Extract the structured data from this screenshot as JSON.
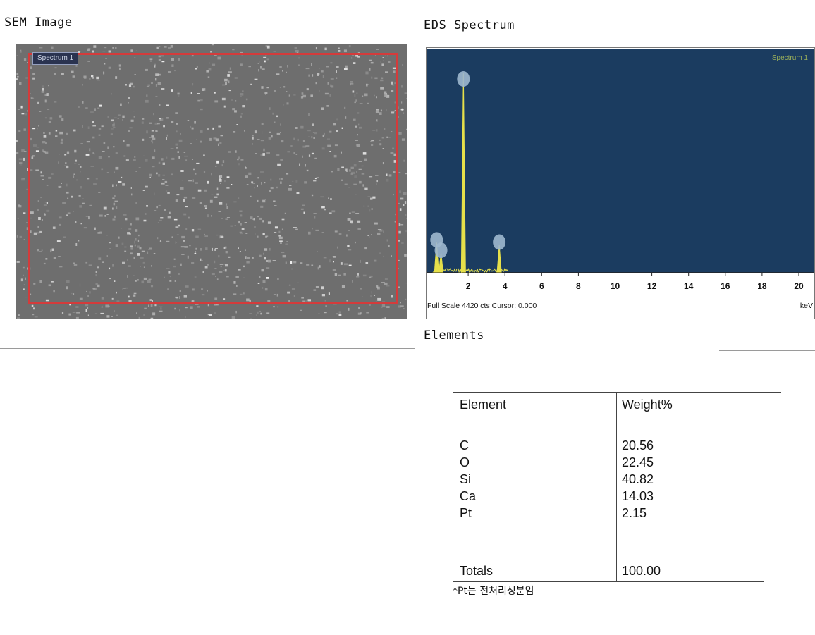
{
  "sem": {
    "header": "SEM Image",
    "image_label": "Spectrum 1"
  },
  "eds": {
    "header": "EDS Spectrum",
    "spectrum_label": "Spectrum 1",
    "footer": "Full Scale 4420 cts Cursor: 0.000",
    "unit": "keV"
  },
  "chart_data": {
    "type": "line",
    "title": "",
    "xlabel": "keV",
    "ylabel": "",
    "xlim": [
      0,
      20
    ],
    "x_ticks": [
      "2",
      "4",
      "6",
      "8",
      "10",
      "12",
      "14",
      "16",
      "18",
      "20"
    ],
    "series": [
      {
        "x": [
          0.28,
          0.52,
          1.74,
          3.69
        ],
        "y": [
          650,
          420,
          4400,
          600
        ]
      }
    ],
    "colors": {
      "background": "#1b3c60",
      "trace": "#e6e04a",
      "markers": "#9fb8cf"
    }
  },
  "elements": {
    "header": "Elements",
    "columns": [
      "Element",
      "Weight%"
    ],
    "rows": [
      {
        "element": "C",
        "weight": "20.56"
      },
      {
        "element": "O",
        "weight": "22.45"
      },
      {
        "element": "Si",
        "weight": "40.82"
      },
      {
        "element": "Ca",
        "weight": "14.03"
      },
      {
        "element": "Pt",
        "weight": "2.15"
      }
    ],
    "totals_label": "Totals",
    "totals_value": "100.00",
    "note": "*Pt는 전처리성분임"
  }
}
